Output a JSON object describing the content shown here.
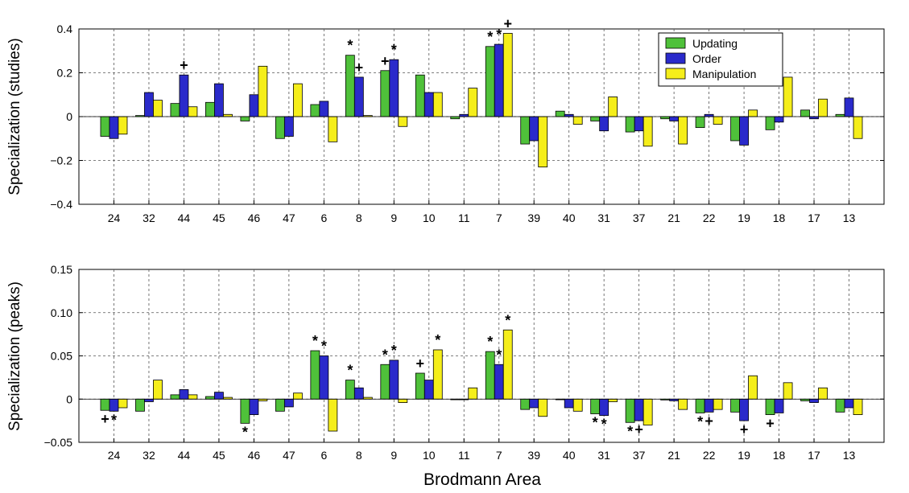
{
  "figure": {
    "xlabel": "Brodmann Area"
  },
  "chart_data": [
    {
      "type": "bar",
      "ylabel": "Specialization (studies)",
      "ylim": [
        -0.4,
        0.4
      ],
      "yticks": [
        -0.4,
        -0.2,
        0,
        0.2,
        0.4
      ],
      "ytick_labels": [
        "−0.4",
        "−0.2",
        "0",
        "0.2",
        "0.4"
      ],
      "grid": true,
      "legend": {
        "placement": "top-right-inside",
        "entries": [
          "Updating",
          "Order",
          "Manipulation"
        ]
      },
      "categories": [
        "24",
        "32",
        "44",
        "45",
        "46",
        "47",
        "6",
        "8",
        "9",
        "10",
        "11",
        "7",
        "39",
        "40",
        "31",
        "37",
        "21",
        "22",
        "19",
        "18",
        "17",
        "13"
      ],
      "series": [
        {
          "name": "Updating",
          "color": "#4fc13a",
          "values": [
            -0.09,
            0.005,
            0.06,
            0.065,
            -0.02,
            -0.1,
            0.055,
            0.28,
            0.21,
            0.19,
            -0.01,
            0.32,
            -0.125,
            0.025,
            -0.02,
            -0.07,
            -0.01,
            -0.05,
            -0.11,
            -0.06,
            0.03,
            0.01
          ]
        },
        {
          "name": "Order",
          "color": "#2a2acb",
          "values": [
            -0.1,
            0.11,
            0.19,
            0.15,
            0.1,
            -0.09,
            0.07,
            0.18,
            0.26,
            0.11,
            0.01,
            0.33,
            -0.11,
            0.01,
            -0.065,
            -0.065,
            -0.02,
            0.01,
            -0.13,
            -0.025,
            -0.01,
            0.085
          ]
        },
        {
          "name": "Manipulation",
          "color": "#f5ee1a",
          "values": [
            -0.08,
            0.075,
            0.045,
            0.01,
            0.23,
            0.15,
            -0.115,
            0.005,
            -0.045,
            0.11,
            0.13,
            0.38,
            -0.23,
            -0.035,
            0.09,
            -0.135,
            -0.125,
            -0.035,
            0.03,
            0.18,
            0.08,
            -0.1
          ]
        }
      ],
      "markers": [
        {
          "symbol": "+",
          "category": "44",
          "series": "Order"
        },
        {
          "symbol": "*",
          "category": "8",
          "series": "Updating"
        },
        {
          "symbol": "+",
          "category": "8",
          "series": "Order"
        },
        {
          "symbol": "+",
          "category": "9",
          "series": "Updating"
        },
        {
          "symbol": "*",
          "category": "9",
          "series": "Order"
        },
        {
          "symbol": "*",
          "category": "7",
          "series": "Updating"
        },
        {
          "symbol": "*",
          "category": "7",
          "series": "Order"
        },
        {
          "symbol": "+",
          "category": "7",
          "series": "Manipulation"
        }
      ]
    },
    {
      "type": "bar",
      "ylabel": "Specialization (peaks)",
      "ylim": [
        -0.05,
        0.15
      ],
      "yticks": [
        -0.05,
        0,
        0.05,
        0.1,
        0.15
      ],
      "ytick_labels": [
        "−0.05",
        "0",
        "0.05",
        "0.10",
        "0.15"
      ],
      "grid": true,
      "categories": [
        "24",
        "32",
        "44",
        "45",
        "46",
        "47",
        "6",
        "8",
        "9",
        "10",
        "11",
        "7",
        "39",
        "40",
        "31",
        "37",
        "21",
        "22",
        "19",
        "18",
        "17",
        "13"
      ],
      "series": [
        {
          "name": "Updating",
          "color": "#4fc13a",
          "values": [
            -0.013,
            -0.014,
            0.005,
            0.003,
            -0.028,
            -0.014,
            0.056,
            0.022,
            0.04,
            0.03,
            0.0,
            0.055,
            -0.012,
            0.0,
            -0.017,
            -0.027,
            -0.001,
            -0.016,
            -0.015,
            -0.018,
            -0.002,
            -0.015
          ]
        },
        {
          "name": "Order",
          "color": "#2a2acb",
          "values": [
            -0.014,
            -0.003,
            0.011,
            0.008,
            -0.018,
            -0.009,
            0.05,
            0.013,
            0.045,
            0.022,
            0.0,
            0.04,
            -0.01,
            -0.01,
            -0.019,
            -0.025,
            -0.002,
            -0.015,
            -0.025,
            -0.016,
            -0.004,
            -0.01
          ]
        },
        {
          "name": "Manipulation",
          "color": "#f5ee1a",
          "values": [
            -0.01,
            0.022,
            0.005,
            0.002,
            -0.002,
            0.007,
            -0.037,
            0.002,
            -0.004,
            0.057,
            0.013,
            0.08,
            -0.02,
            -0.014,
            -0.003,
            -0.03,
            -0.012,
            -0.012,
            0.027,
            0.019,
            0.013,
            -0.018
          ]
        }
      ],
      "markers": [
        {
          "symbol": "+",
          "category": "24",
          "series": "Updating"
        },
        {
          "symbol": "*",
          "category": "24",
          "series": "Order"
        },
        {
          "symbol": "*",
          "category": "46",
          "series": "Updating"
        },
        {
          "symbol": "*",
          "category": "6",
          "series": "Updating"
        },
        {
          "symbol": "*",
          "category": "6",
          "series": "Order"
        },
        {
          "symbol": "*",
          "category": "8",
          "series": "Updating"
        },
        {
          "symbol": "*",
          "category": "9",
          "series": "Updating"
        },
        {
          "symbol": "*",
          "category": "9",
          "series": "Order"
        },
        {
          "symbol": "+",
          "category": "10",
          "series": "Updating"
        },
        {
          "symbol": "*",
          "category": "10",
          "series": "Manipulation"
        },
        {
          "symbol": "*",
          "category": "7",
          "series": "Updating"
        },
        {
          "symbol": "*",
          "category": "7",
          "series": "Order"
        },
        {
          "symbol": "*",
          "category": "7",
          "series": "Manipulation"
        },
        {
          "symbol": "*",
          "category": "31",
          "series": "Updating"
        },
        {
          "symbol": "*",
          "category": "31",
          "series": "Order"
        },
        {
          "symbol": "*",
          "category": "37",
          "series": "Updating"
        },
        {
          "symbol": "+",
          "category": "37",
          "series": "Order"
        },
        {
          "symbol": "*",
          "category": "22",
          "series": "Updating"
        },
        {
          "symbol": "+",
          "category": "22",
          "series": "Order"
        },
        {
          "symbol": "+",
          "category": "19",
          "series": "Order"
        },
        {
          "symbol": "+",
          "category": "18",
          "series": "Updating"
        }
      ]
    }
  ]
}
